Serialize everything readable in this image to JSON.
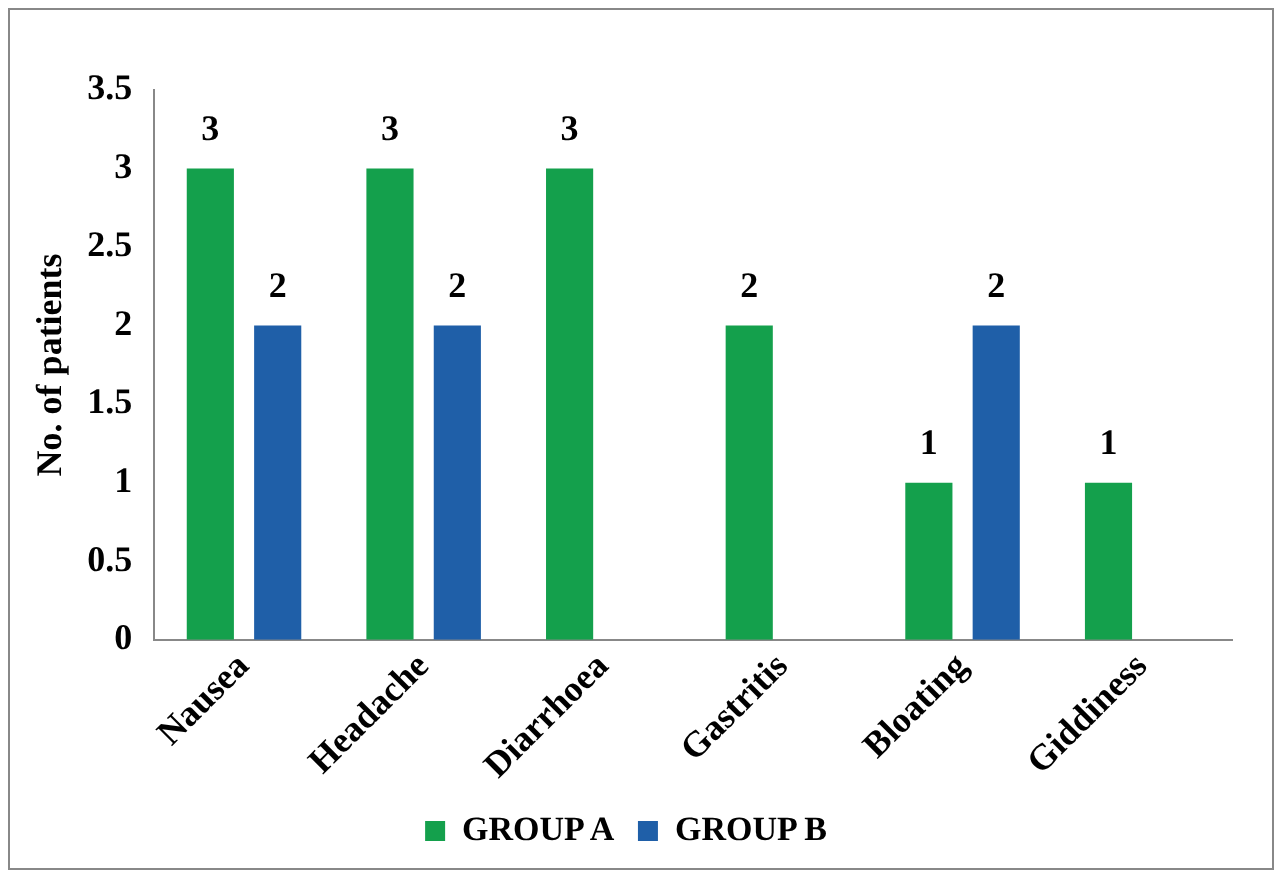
{
  "chart_data": {
    "type": "bar",
    "ylabel": "No. of patients",
    "categories": [
      "Nausea",
      "Headache",
      "Diarrhoea",
      "Gastritis",
      "Bloating",
      "Giddiness"
    ],
    "series": [
      {
        "name": "GROUP A",
        "color": "#14a04c",
        "values": [
          3,
          3,
          3,
          2,
          1,
          1
        ]
      },
      {
        "name": "GROUP B",
        "color": "#1f5fa8",
        "values": [
          2,
          2,
          null,
          null,
          2,
          null
        ]
      }
    ],
    "ylim": [
      0,
      3.5
    ],
    "yticks": [
      0,
      0.5,
      1,
      1.5,
      2,
      2.5,
      3,
      3.5
    ],
    "grid": false,
    "legend": "bottom",
    "data_labels": true
  }
}
